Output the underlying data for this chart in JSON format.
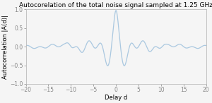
{
  "title": "Autocorelation of the total noise signal sampled at 1.25 GHz",
  "xlabel": "Delay d",
  "ylabel": "Autocorrelation |A(d)|",
  "xlim": [
    -20,
    20
  ],
  "ylim": [
    -1,
    1
  ],
  "xticks": [
    -20,
    -15,
    -10,
    -5,
    0,
    5,
    10,
    15,
    20
  ],
  "yticks": [
    -1,
    -0.5,
    0,
    0.5,
    1
  ],
  "line_color": "#aac8e0",
  "line_width": 0.9,
  "bg_color": "#f5f5f5",
  "title_fontsize": 6.5,
  "label_fontsize": 6,
  "tick_fontsize": 5.5
}
